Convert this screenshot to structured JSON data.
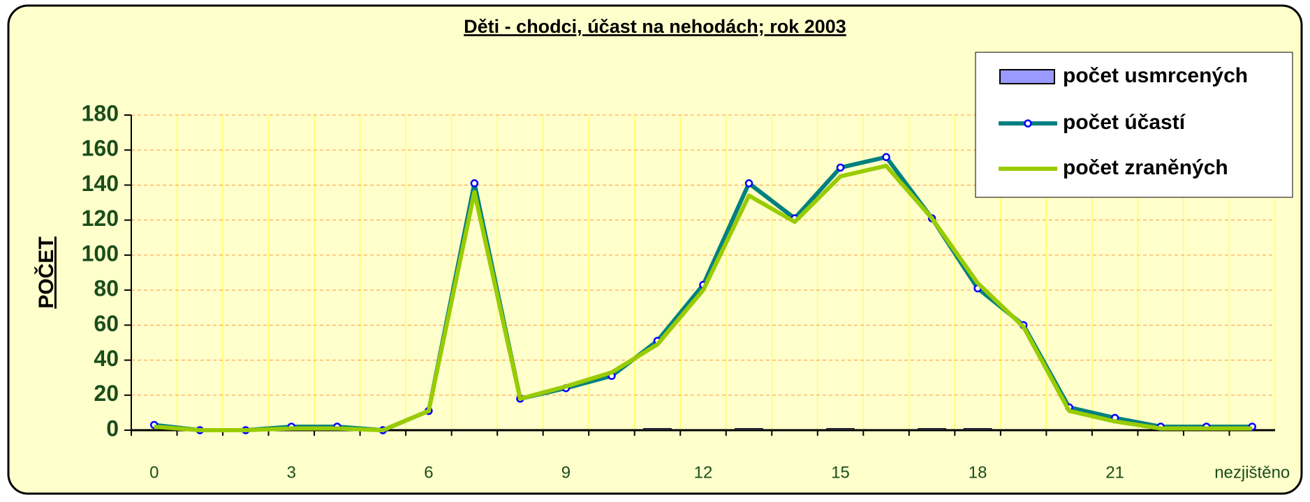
{
  "chart_data": {
    "type": "line",
    "title": "Děti - chodci, účast na nehodách; rok 2003",
    "y_label": "POČET",
    "categories": [
      "0",
      null,
      null,
      "3",
      null,
      null,
      "6",
      null,
      null,
      "9",
      null,
      null,
      "12",
      null,
      null,
      "15",
      null,
      null,
      "18",
      null,
      null,
      "21",
      null,
      null,
      "nezjištěno"
    ],
    "series": [
      {
        "name": "počet usmrcených",
        "type": "bar",
        "color": "#9999ff",
        "values": [
          0,
          0,
          0,
          0,
          0,
          0,
          0,
          0,
          0,
          0,
          0,
          1,
          0,
          1,
          0,
          1,
          0,
          1,
          1,
          0,
          0,
          0,
          0,
          0,
          0
        ]
      },
      {
        "name": "počet účastí",
        "type": "line",
        "color": "#008080",
        "marker": "#0000ff",
        "values": [
          3,
          0,
          0,
          2,
          2,
          0,
          11,
          141,
          18,
          24,
          31,
          51,
          83,
          141,
          121,
          150,
          156,
          121,
          81,
          60,
          13,
          7,
          2,
          2,
          2
        ]
      },
      {
        "name": "počet zraněných",
        "type": "line",
        "color": "#99cc00",
        "values": [
          2,
          0,
          0,
          1,
          1,
          0,
          11,
          136,
          18,
          25,
          33,
          49,
          80,
          134,
          119,
          145,
          151,
          121,
          84,
          59,
          11,
          5,
          1,
          1,
          1
        ]
      }
    ],
    "ylim": [
      0,
      180
    ],
    "yticks": [
      0,
      20,
      40,
      60,
      80,
      100,
      120,
      140,
      160,
      180
    ],
    "grid": true,
    "legend": "top-right"
  }
}
